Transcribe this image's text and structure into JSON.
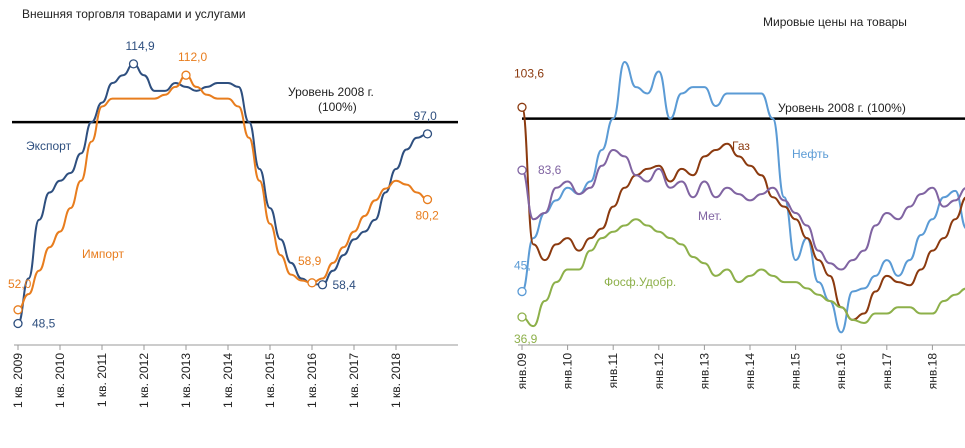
{
  "chart_data": [
    {
      "type": "line",
      "title": "Внешняя торговля товарами и услугами",
      "categories": [
        "1 кв. 2009",
        null,
        null,
        null,
        "1 кв. 2010",
        null,
        null,
        null,
        "1 кв. 2011",
        null,
        null,
        null,
        "1 кв. 2012",
        null,
        null,
        null,
        "1 кв. 2013",
        null,
        null,
        null,
        "1 кв. 2014",
        null,
        null,
        null,
        "1 кв. 2015",
        null,
        null,
        null,
        "1 кв. 2016",
        null,
        null,
        null,
        "1 кв. 2017",
        null,
        null,
        null,
        "1 кв. 2018",
        null,
        null,
        null
      ],
      "ylim": [
        43,
        121
      ],
      "reference": {
        "value": 100,
        "label": [
          "Уровень 2008 г.",
          "(100%)"
        ]
      },
      "series": [
        {
          "name": "Экспорт",
          "color": "#2e4f7f",
          "values": [
            48.5,
            60,
            75,
            82,
            85,
            87,
            92,
            100,
            105,
            110,
            112,
            114.9,
            112,
            108,
            108,
            110,
            109,
            108,
            109,
            110,
            110,
            109,
            100,
            88,
            78,
            70,
            64,
            60,
            58.6,
            58.4,
            62,
            66,
            70,
            72,
            75,
            82,
            88,
            93,
            96,
            97.0
          ],
          "value_labels": [
            "48,5",
            null,
            null,
            null,
            null,
            null,
            null,
            null,
            null,
            null,
            null,
            "114,9",
            null,
            null,
            null,
            null,
            null,
            null,
            null,
            null,
            null,
            null,
            null,
            null,
            null,
            null,
            null,
            null,
            null,
            "58,4",
            null,
            null,
            null,
            null,
            null,
            null,
            null,
            null,
            null,
            "97,0"
          ]
        },
        {
          "name": "Импорт",
          "color": "#e87d1e",
          "values": [
            52.0,
            56,
            62,
            68,
            72,
            78,
            85,
            95,
            104,
            106,
            106,
            106,
            106,
            106,
            107,
            109,
            112.0,
            109,
            107,
            106,
            106,
            104,
            96,
            85,
            74,
            66,
            61,
            59.5,
            58.9,
            60,
            64,
            68,
            72,
            76,
            80,
            83,
            85,
            84,
            82,
            80.2
          ],
          "value_labels": [
            "52,0",
            null,
            null,
            null,
            null,
            null,
            null,
            null,
            null,
            null,
            null,
            null,
            null,
            null,
            null,
            null,
            "112,0",
            null,
            null,
            null,
            null,
            null,
            null,
            null,
            null,
            null,
            null,
            null,
            "58,9",
            null,
            null,
            null,
            null,
            null,
            null,
            null,
            null,
            null,
            null,
            "80,2"
          ]
        }
      ]
    },
    {
      "type": "line",
      "title": "Мировые цены на товары",
      "categories": [
        "янв.09",
        null,
        null,
        null,
        "янв.10",
        null,
        null,
        null,
        "янв.11",
        null,
        null,
        null,
        "янв.12",
        null,
        null,
        null,
        "янв.13",
        null,
        null,
        null,
        "янв.14",
        null,
        null,
        null,
        "янв.15",
        null,
        null,
        null,
        "янв.16",
        null,
        null,
        null,
        "янв.17",
        null,
        null,
        null,
        "янв.18",
        null,
        null,
        null
      ],
      "ylim": [
        28,
        125
      ],
      "reference": {
        "value": 100,
        "label": [
          "Уровень 2008 г. (100%)"
        ]
      },
      "series": [
        {
          "name": "Нефть",
          "color": "#5b9bd5",
          "values": [
            45,
            62,
            70,
            74,
            78,
            76,
            80,
            90,
            100,
            118,
            110,
            108,
            115,
            100,
            108,
            110,
            110,
            104,
            108,
            108,
            108,
            108,
            100,
            75,
            55,
            62,
            48,
            42,
            32,
            45,
            46,
            50,
            55,
            50,
            55,
            63,
            68,
            75,
            77,
            65
          ],
          "value_labels": [
            "45,",
            null,
            null,
            null,
            null,
            null,
            null,
            null,
            null,
            null,
            null,
            null,
            null,
            null,
            null,
            null,
            null,
            null,
            null,
            null,
            null,
            null,
            null,
            null,
            null,
            null,
            null,
            null,
            null,
            null,
            null,
            null,
            null,
            null,
            null,
            null,
            null,
            null,
            null,
            null
          ]
        },
        {
          "name": "Газ",
          "color": "#8b3a0f",
          "values": [
            103.6,
            60,
            55,
            60,
            62,
            58,
            62,
            65,
            72,
            78,
            82,
            84,
            85,
            80,
            84,
            82,
            88,
            90,
            92,
            88,
            85,
            82,
            75,
            72,
            68,
            62,
            55,
            50,
            40,
            36,
            38,
            45,
            50,
            48,
            47,
            52,
            58,
            62,
            68,
            75
          ],
          "value_labels": [
            "103,6",
            null,
            null,
            null,
            null,
            null,
            null,
            null,
            null,
            null,
            null,
            null,
            null,
            null,
            null,
            null,
            null,
            null,
            null,
            null,
            null,
            null,
            null,
            null,
            null,
            null,
            null,
            null,
            null,
            null,
            null,
            null,
            null,
            null,
            null,
            null,
            null,
            null,
            null,
            null
          ]
        },
        {
          "name": "Мет.",
          "color": "#8064a2",
          "values": [
            83.6,
            68,
            70,
            78,
            80,
            76,
            78,
            85,
            90,
            88,
            82,
            80,
            84,
            78,
            80,
            75,
            80,
            75,
            78,
            76,
            74,
            76,
            78,
            74,
            70,
            66,
            58,
            54,
            52,
            55,
            58,
            66,
            70,
            68,
            72,
            76,
            78,
            72,
            74,
            78
          ],
          "value_labels": [
            "83,6",
            null,
            null,
            null,
            null,
            null,
            null,
            null,
            null,
            null,
            null,
            null,
            null,
            null,
            null,
            null,
            null,
            null,
            null,
            null,
            null,
            null,
            null,
            null,
            null,
            null,
            null,
            null,
            null,
            null,
            null,
            null,
            null,
            null,
            null,
            null,
            null,
            null,
            null,
            null
          ]
        },
        {
          "name": "Фосф.Удобр.",
          "color": "#8db04a",
          "values": [
            36.9,
            34,
            42,
            48,
            52,
            52,
            58,
            62,
            64,
            66,
            68,
            66,
            64,
            62,
            60,
            56,
            54,
            50,
            52,
            48,
            50,
            52,
            50,
            48,
            48,
            46,
            44,
            42,
            40,
            36,
            35,
            38,
            38,
            40,
            40,
            38,
            38,
            42,
            44,
            46
          ],
          "value_labels": [
            "36,9",
            null,
            null,
            null,
            null,
            null,
            null,
            null,
            null,
            null,
            null,
            null,
            null,
            null,
            null,
            null,
            null,
            null,
            null,
            null,
            null,
            null,
            null,
            null,
            null,
            null,
            null,
            null,
            null,
            null,
            null,
            null,
            null,
            null,
            null,
            null,
            null,
            null,
            null,
            null
          ]
        }
      ]
    }
  ]
}
